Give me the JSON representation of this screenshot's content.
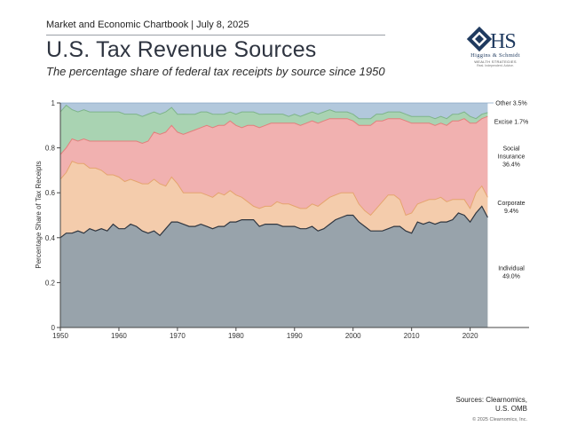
{
  "header": {
    "chartbook": "Market and Economic Chartbook | July 8, 2025",
    "title": "U.S. Tax Revenue Sources",
    "subtitle": "The percentage share of federal tax receipts by source since 1950"
  },
  "logo": {
    "name": "Higgins & Schmidt",
    "sub": "WEALTH STRATEGIES",
    "tag": "Real. Independent. Advice."
  },
  "footer": {
    "sources_line1": "Sources: Clearnomics,",
    "sources_line2": "U.S. OMB",
    "copyright": "© 2025 Clearnomics, Inc."
  },
  "colors": {
    "individual": "#98a3ab",
    "corporate": "#f4ccac",
    "social": "#f1b1b0",
    "excise": "#a9d3b2",
    "other": "#b2c8dc",
    "individual_line": "#2f3640",
    "corporate_line": "#e5a46e",
    "social_line": "#e37f7c",
    "excise_line": "#7eb48a",
    "other_line": "#88a6c4"
  },
  "chart_data": {
    "type": "area",
    "stacked": true,
    "title": "U.S. Tax Revenue Sources",
    "ylabel": "Percentage Share of Tax Receipts",
    "xlabel": "",
    "xlim": [
      1950,
      2024
    ],
    "ylim": [
      0,
      1
    ],
    "x_ticks": [
      1950,
      1960,
      1970,
      1980,
      1990,
      2000,
      2010,
      2020
    ],
    "y_ticks": [
      0,
      0.2,
      0.4,
      0.6,
      0.8,
      1
    ],
    "y_tick_labels": [
      "0",
      "0.2",
      "0.4",
      "0.6",
      "0.8",
      "1"
    ],
    "grid": false,
    "x": [
      1950,
      1951,
      1952,
      1953,
      1954,
      1955,
      1956,
      1957,
      1958,
      1959,
      1960,
      1961,
      1962,
      1963,
      1964,
      1965,
      1966,
      1967,
      1968,
      1969,
      1970,
      1971,
      1972,
      1973,
      1974,
      1975,
      1976,
      1977,
      1978,
      1979,
      1980,
      1981,
      1982,
      1983,
      1984,
      1985,
      1986,
      1987,
      1988,
      1989,
      1990,
      1991,
      1992,
      1993,
      1994,
      1995,
      1996,
      1997,
      1998,
      1999,
      2000,
      2001,
      2002,
      2003,
      2004,
      2005,
      2006,
      2007,
      2008,
      2009,
      2010,
      2011,
      2012,
      2013,
      2014,
      2015,
      2016,
      2017,
      2018,
      2019,
      2020,
      2021,
      2022,
      2023
    ],
    "series": [
      {
        "name": "Individual",
        "values": [
          0.4,
          0.42,
          0.42,
          0.43,
          0.42,
          0.44,
          0.43,
          0.44,
          0.43,
          0.46,
          0.44,
          0.44,
          0.46,
          0.45,
          0.43,
          0.42,
          0.43,
          0.41,
          0.44,
          0.47,
          0.47,
          0.46,
          0.45,
          0.45,
          0.46,
          0.45,
          0.44,
          0.45,
          0.45,
          0.47,
          0.47,
          0.48,
          0.48,
          0.48,
          0.45,
          0.46,
          0.46,
          0.46,
          0.45,
          0.45,
          0.45,
          0.44,
          0.44,
          0.45,
          0.43,
          0.44,
          0.46,
          0.48,
          0.49,
          0.5,
          0.5,
          0.47,
          0.45,
          0.43,
          0.43,
          0.43,
          0.44,
          0.45,
          0.45,
          0.43,
          0.42,
          0.47,
          0.46,
          0.47,
          0.46,
          0.47,
          0.47,
          0.48,
          0.51,
          0.5,
          0.47,
          0.51,
          0.54,
          0.49
        ]
      },
      {
        "name": "Corporate",
        "values": [
          0.26,
          0.27,
          0.32,
          0.3,
          0.31,
          0.27,
          0.28,
          0.26,
          0.25,
          0.22,
          0.23,
          0.21,
          0.2,
          0.2,
          0.21,
          0.22,
          0.23,
          0.23,
          0.19,
          0.2,
          0.17,
          0.14,
          0.15,
          0.15,
          0.14,
          0.14,
          0.14,
          0.15,
          0.14,
          0.14,
          0.12,
          0.1,
          0.08,
          0.06,
          0.08,
          0.08,
          0.08,
          0.1,
          0.1,
          0.1,
          0.09,
          0.09,
          0.09,
          0.1,
          0.11,
          0.12,
          0.12,
          0.11,
          0.11,
          0.1,
          0.1,
          0.08,
          0.07,
          0.07,
          0.1,
          0.13,
          0.15,
          0.14,
          0.12,
          0.07,
          0.09,
          0.08,
          0.1,
          0.1,
          0.11,
          0.11,
          0.09,
          0.09,
          0.06,
          0.07,
          0.06,
          0.09,
          0.09,
          0.09
        ]
      },
      {
        "name": "Social Insurance",
        "values": [
          0.11,
          0.11,
          0.1,
          0.1,
          0.11,
          0.12,
          0.12,
          0.13,
          0.15,
          0.15,
          0.16,
          0.18,
          0.17,
          0.18,
          0.18,
          0.19,
          0.21,
          0.22,
          0.24,
          0.23,
          0.23,
          0.26,
          0.27,
          0.28,
          0.29,
          0.31,
          0.31,
          0.3,
          0.31,
          0.31,
          0.31,
          0.31,
          0.34,
          0.36,
          0.36,
          0.36,
          0.37,
          0.35,
          0.36,
          0.36,
          0.37,
          0.37,
          0.38,
          0.37,
          0.37,
          0.36,
          0.35,
          0.34,
          0.33,
          0.33,
          0.32,
          0.35,
          0.38,
          0.4,
          0.39,
          0.36,
          0.34,
          0.34,
          0.36,
          0.42,
          0.4,
          0.36,
          0.35,
          0.34,
          0.33,
          0.33,
          0.34,
          0.35,
          0.35,
          0.36,
          0.38,
          0.31,
          0.3,
          0.36
        ]
      },
      {
        "name": "Excise",
        "values": [
          0.19,
          0.19,
          0.13,
          0.13,
          0.13,
          0.13,
          0.13,
          0.13,
          0.13,
          0.13,
          0.13,
          0.12,
          0.12,
          0.12,
          0.12,
          0.12,
          0.09,
          0.09,
          0.09,
          0.08,
          0.08,
          0.09,
          0.08,
          0.07,
          0.07,
          0.06,
          0.06,
          0.05,
          0.05,
          0.04,
          0.05,
          0.07,
          0.06,
          0.06,
          0.06,
          0.05,
          0.04,
          0.04,
          0.04,
          0.03,
          0.04,
          0.04,
          0.04,
          0.04,
          0.04,
          0.04,
          0.04,
          0.03,
          0.03,
          0.03,
          0.03,
          0.03,
          0.03,
          0.03,
          0.03,
          0.03,
          0.03,
          0.03,
          0.03,
          0.03,
          0.03,
          0.03,
          0.03,
          0.03,
          0.03,
          0.03,
          0.03,
          0.03,
          0.03,
          0.03,
          0.03,
          0.02,
          0.02,
          0.017
        ]
      },
      {
        "name": "Other",
        "values": [
          0.04,
          0.01,
          0.03,
          0.04,
          0.03,
          0.04,
          0.04,
          0.04,
          0.04,
          0.04,
          0.04,
          0.05,
          0.05,
          0.05,
          0.06,
          0.05,
          0.04,
          0.05,
          0.04,
          0.02,
          0.05,
          0.05,
          0.05,
          0.05,
          0.04,
          0.04,
          0.05,
          0.05,
          0.05,
          0.04,
          0.05,
          0.04,
          0.04,
          0.04,
          0.05,
          0.05,
          0.05,
          0.05,
          0.05,
          0.06,
          0.05,
          0.06,
          0.05,
          0.04,
          0.05,
          0.04,
          0.03,
          0.04,
          0.04,
          0.04,
          0.05,
          0.07,
          0.07,
          0.07,
          0.05,
          0.05,
          0.04,
          0.04,
          0.04,
          0.05,
          0.06,
          0.06,
          0.06,
          0.06,
          0.07,
          0.06,
          0.07,
          0.05,
          0.05,
          0.04,
          0.06,
          0.07,
          0.05,
          0.035
        ]
      }
    ],
    "annotations": [
      {
        "series": "Individual",
        "lines": [
          "Individual",
          "49.0%"
        ]
      },
      {
        "series": "Corporate",
        "lines": [
          "Corporate",
          "9.4%"
        ]
      },
      {
        "series": "Social Insurance",
        "lines": [
          "Social",
          "Insurance",
          "36.4%"
        ]
      },
      {
        "series": "Excise",
        "lines": [
          "Excise  1.7%"
        ]
      },
      {
        "series": "Other",
        "lines": [
          "Other  3.5%"
        ]
      }
    ]
  }
}
